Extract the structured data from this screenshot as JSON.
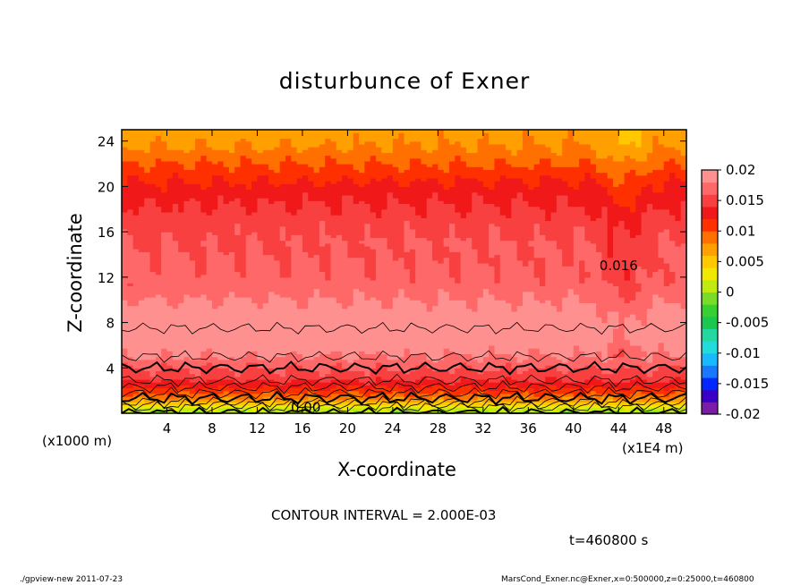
{
  "title": "disturbunce of Exner",
  "footer": {
    "contour_interval": "CONTOUR INTERVAL = 2.000E-03",
    "time": "t=460800 s",
    "left_note": "./gpview-new   2011-07-23",
    "right_note": "MarsCond_Exner.nc@Exner,x=0:500000,z=0:25000,t=460800"
  },
  "chart_data": {
    "type": "heatmap",
    "title": "disturbunce of Exner",
    "xlabel": "X-coordinate",
    "ylabel": "Z-coordinate",
    "x_unit_label": "(x1E4 m)",
    "y_unit_label": "(x1000 m)",
    "xlim": [
      0,
      50
    ],
    "ylim": [
      0,
      25
    ],
    "x_ticks": [
      4,
      8,
      12,
      16,
      20,
      24,
      28,
      32,
      36,
      40,
      44,
      48
    ],
    "y_ticks": [
      4,
      8,
      12,
      16,
      20,
      24
    ],
    "colorbar": {
      "ticks": [
        "0.02",
        "0.015",
        "0.01",
        "0.005",
        "0",
        "-0.005",
        "-0.01",
        "-0.015",
        "-0.02"
      ],
      "range": [
        -0.02,
        0.02
      ],
      "colors": [
        "#7a1ca8",
        "#3a00c8",
        "#0028ff",
        "#1a78ff",
        "#1ab8ff",
        "#22dcdc",
        "#22d8a0",
        "#1ac850",
        "#38d030",
        "#78dc28",
        "#c0ea10",
        "#f0e800",
        "#ffc800",
        "#ffa000",
        "#ff7000",
        "#ff3000",
        "#f01818",
        "#f84040",
        "#ff6868",
        "#ff9090"
      ]
    },
    "contour_labels": [
      {
        "text": "0.00",
        "x": 16.3,
        "z": 0.1
      },
      {
        "text": "0.016",
        "x": 44.0,
        "z": 12.6
      }
    ],
    "contour_interval": 0.002,
    "time_s": 460800,
    "profile": [
      {
        "z": 0.0,
        "value": 0.0
      },
      {
        "z": 0.5,
        "value": 0.002
      },
      {
        "z": 1.0,
        "value": 0.006
      },
      {
        "z": 1.5,
        "value": 0.009
      },
      {
        "z": 2.0,
        "value": 0.011
      },
      {
        "z": 2.6,
        "value": 0.013
      },
      {
        "z": 3.2,
        "value": 0.015
      },
      {
        "z": 4.0,
        "value": 0.016
      },
      {
        "z": 5.0,
        "value": 0.018
      },
      {
        "z": 6.5,
        "value": 0.0195
      },
      {
        "z": 7.5,
        "value": 0.02
      },
      {
        "z": 9.0,
        "value": 0.019
      },
      {
        "z": 11.0,
        "value": 0.017
      },
      {
        "z": 13.0,
        "value": 0.0163
      },
      {
        "z": 15.0,
        "value": 0.016
      },
      {
        "z": 17.0,
        "value": 0.015
      },
      {
        "z": 19.0,
        "value": 0.0135
      },
      {
        "z": 20.5,
        "value": 0.012
      },
      {
        "z": 22.0,
        "value": 0.01
      },
      {
        "z": 23.5,
        "value": 0.008
      },
      {
        "z": 25.0,
        "value": 0.007
      }
    ]
  }
}
